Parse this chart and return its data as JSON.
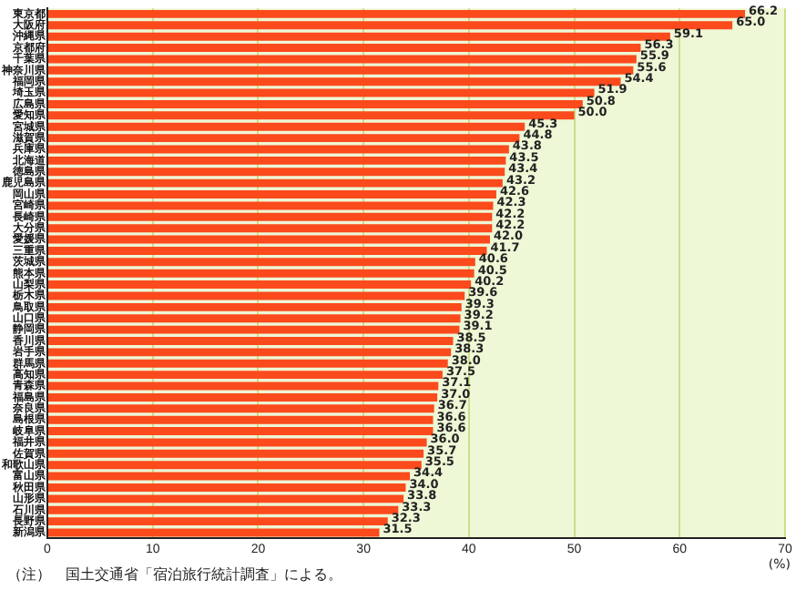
{
  "chart_data": {
    "type": "bar",
    "orientation": "horizontal",
    "categories": [
      "東京都",
      "大阪府",
      "沖縄県",
      "京都府",
      "千葉県",
      "神奈川県",
      "福岡県",
      "埼玉県",
      "広島県",
      "愛知県",
      "宮城県",
      "滋賀県",
      "兵庫県",
      "北海道",
      "徳島県",
      "鹿児島県",
      "岡山県",
      "宮崎県",
      "長崎県",
      "大分県",
      "愛媛県",
      "三重県",
      "茨城県",
      "熊本県",
      "山梨県",
      "栃木県",
      "鳥取県",
      "山口県",
      "静岡県",
      "香川県",
      "岩手県",
      "群馬県",
      "高知県",
      "青森県",
      "福島県",
      "奈良県",
      "島根県",
      "岐阜県",
      "福井県",
      "佐賀県",
      "和歌山県",
      "富山県",
      "秋田県",
      "山形県",
      "石川県",
      "長野県",
      "新潟県"
    ],
    "values": [
      66.2,
      65.0,
      59.1,
      56.3,
      55.9,
      55.6,
      54.4,
      51.9,
      50.8,
      50.0,
      45.3,
      44.8,
      43.8,
      43.5,
      43.4,
      43.2,
      42.6,
      42.3,
      42.2,
      42.2,
      42.0,
      41.7,
      40.6,
      40.5,
      40.2,
      39.6,
      39.3,
      39.2,
      39.1,
      38.5,
      38.3,
      38.0,
      37.5,
      37.1,
      37.0,
      36.7,
      36.6,
      36.6,
      36.0,
      35.7,
      35.5,
      34.4,
      34.0,
      33.8,
      33.3,
      32.3,
      31.5
    ],
    "color": "#fb4a1c",
    "xlim": [
      0,
      70
    ],
    "xticks": [
      0,
      10,
      20,
      30,
      40,
      50,
      60,
      70
    ],
    "xlabel": "(%)",
    "grid": "x",
    "legend": false,
    "value_labels": [
      "66.2",
      "65.0",
      "59.1",
      "56.3",
      "55.9",
      "55.6",
      "54.4",
      "51.9",
      "50.8",
      "50.0",
      "45.3",
      "44.8",
      "43.8",
      "43.5",
      "43.4",
      "43.2",
      "42.6",
      "42.3",
      "42.2",
      "42.2",
      "42.0",
      "41.7",
      "40.6",
      "40.5",
      "40.2",
      "39.6",
      "39.3",
      "39.2",
      "39.1",
      "38.5",
      "38.3",
      "38.0",
      "37.5",
      "37.1",
      "37.0",
      "36.7",
      "36.6",
      "36.6",
      "36.0",
      "35.7",
      "35.5",
      "34.4",
      "34.0",
      "33.8",
      "33.3",
      "32.3",
      "31.5"
    ],
    "annotations": [
      "（注）　国土交通省「宿泊旅行統計調査」による。"
    ]
  }
}
